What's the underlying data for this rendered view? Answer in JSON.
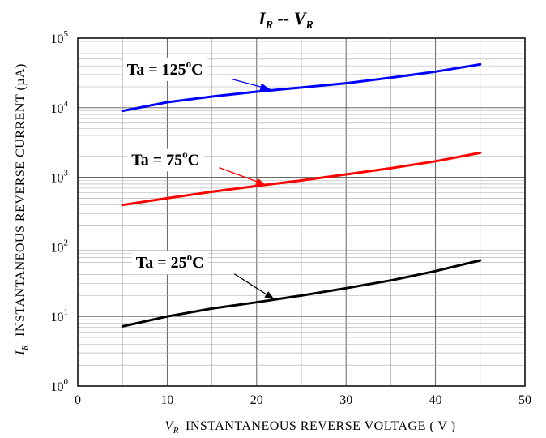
{
  "chart_data": {
    "type": "line",
    "title": {
      "main_1": "I",
      "sub_1": "R",
      "sep": " -- ",
      "main_2": "V",
      "sub_2": "R"
    },
    "xlabel": {
      "symbol": "V",
      "sub": "R",
      "text": "INSTANTANEOUS  REVERSE  VOLTAGE ( V )"
    },
    "ylabel": {
      "symbol": "I",
      "sub": "R",
      "text": "INSTANTANEOUS  REVERSE  CURRENT  (µA)"
    },
    "xlim": [
      0,
      50
    ],
    "ylim": [
      1,
      100000
    ],
    "yscale": "log",
    "grid": true,
    "x_ticks": [
      "0",
      "10",
      "20",
      "30",
      "40",
      "50"
    ],
    "y_ticks": [
      {
        "base": "10",
        "exp": "0"
      },
      {
        "base": "10",
        "exp": "1"
      },
      {
        "base": "10",
        "exp": "2"
      },
      {
        "base": "10",
        "exp": "3"
      },
      {
        "base": "10",
        "exp": "4"
      },
      {
        "base": "10",
        "exp": "5"
      }
    ],
    "series": [
      {
        "color": "#0000ff",
        "x": [
          5,
          10,
          15,
          20,
          25,
          30,
          35,
          40,
          45
        ],
        "y": [
          9000,
          12000,
          14500,
          17000,
          19500,
          22500,
          27000,
          33000,
          42000
        ]
      },
      {
        "color": "#ff0000",
        "x": [
          5,
          10,
          15,
          20,
          25,
          30,
          35,
          40,
          45
        ],
        "y": [
          400,
          500,
          620,
          750,
          900,
          1100,
          1350,
          1700,
          2250
        ]
      },
      {
        "color": "#000000",
        "x": [
          5,
          10,
          15,
          20,
          25,
          30,
          35,
          40,
          45
        ],
        "y": [
          7.2,
          10,
          13,
          16,
          20,
          25.5,
          33,
          45,
          64
        ]
      }
    ],
    "annotations": [
      {
        "text": "Ta = 125",
        "unit": "C",
        "deg": "o",
        "color": "#0000ff"
      },
      {
        "text": "Ta = 75",
        "unit": "C",
        "deg": "o",
        "color": "#ff0000"
      },
      {
        "text": "Ta = 25",
        "unit": "C",
        "deg": "o",
        "color": "#000000"
      }
    ]
  }
}
